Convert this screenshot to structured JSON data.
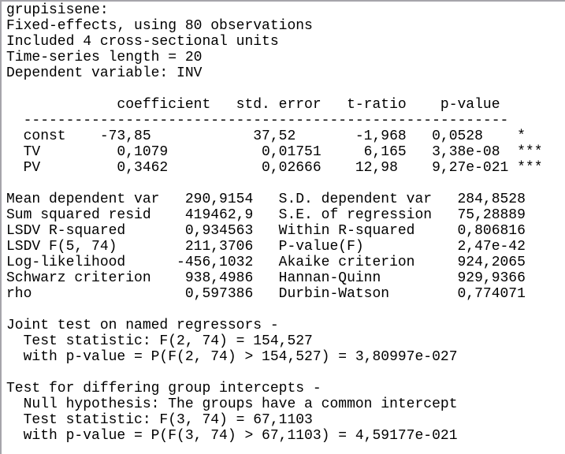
{
  "colors": {
    "background": "#ffffff",
    "text": "#000000",
    "border": "#a6a5ab"
  },
  "model": {
    "name": "grupisisene:",
    "estimator_line": "Fixed-effects, using 80 observations",
    "units_line": "Included 4 cross-sectional units",
    "ts_length_line": "Time-series length = 20",
    "dependent_line": "Dependent variable: INV"
  },
  "coefficient_table": {
    "columns": [
      "coefficient",
      "std. error",
      "t-ratio",
      "p-value"
    ],
    "rows": [
      {
        "variable": "const",
        "coefficient": "-73,85",
        "std_error": "37,52",
        "t_ratio": "-1,968",
        "p_value": "0,0528",
        "significance": "*"
      },
      {
        "variable": "TV",
        "coefficient": "0,1079",
        "std_error": "0,01751",
        "t_ratio": "6,165",
        "p_value": "3,38e-08",
        "significance": "***"
      },
      {
        "variable": "PV",
        "coefficient": "0,3462",
        "std_error": "0,02666",
        "t_ratio": "12,98",
        "p_value": "9,27e-021",
        "significance": "***"
      }
    ]
  },
  "statistics": [
    {
      "label": "Mean dependent var",
      "value": "290,9154"
    },
    {
      "label": "S.D. dependent var",
      "value": "284,8528"
    },
    {
      "label": "Sum squared resid",
      "value": "419462,9"
    },
    {
      "label": "S.E. of regression",
      "value": "75,28889"
    },
    {
      "label": "LSDV R-squared",
      "value": "0,934563"
    },
    {
      "label": "Within R-squared",
      "value": "0,806816"
    },
    {
      "label": "LSDV F(5, 74)",
      "value": "211,3706"
    },
    {
      "label": "P-value(F)",
      "value": "2,47e-42"
    },
    {
      "label": "Log-likelihood",
      "value": "-456,1032"
    },
    {
      "label": "Akaike criterion",
      "value": "924,2065"
    },
    {
      "label": "Schwarz criterion",
      "value": "938,4986"
    },
    {
      "label": "Hannan-Quinn",
      "value": "929,9366"
    },
    {
      "label": "rho",
      "value": "0,597386"
    },
    {
      "label": "Durbin-Watson",
      "value": "0,774071"
    }
  ],
  "tests": [
    {
      "title": "Joint test on named regressors -",
      "statistic": "F(2, 74) = 154,527",
      "p_value_line": "with p-value = P(F(2, 74) > 154,527) = 3,80997e-027"
    },
    {
      "title": "Test for differing group intercepts -",
      "null_hypothesis": "The groups have a common intercept",
      "statistic": "F(3, 74) = 67,1103",
      "p_value_line": "with p-value = P(F(3, 74) > 67,1103) = 4,59177e-021"
    }
  ],
  "report": {
    "lines": [
      "grupisisene:",
      "Fixed-effects, using 80 observations",
      "Included 4 cross-sectional units",
      "Time-series length = 20",
      "Dependent variable: INV",
      "",
      "             coefficient   std. error   t-ratio    p-value",
      "  ---------------------------------------------------------",
      "  const    -73,85            37,52       -1,968   0,0528    *",
      "  TV         0,1079           0,01751     6,165   3,38e-08  ***",
      "  PV         0,3462           0,02666    12,98    9,27e-021 ***",
      "",
      "Mean dependent var   290,9154   S.D. dependent var   284,8528",
      "Sum squared resid    419462,9   S.E. of regression   75,28889",
      "LSDV R-squared       0,934563   Within R-squared     0,806816",
      "LSDV F(5, 74)        211,3706   P-value(F)           2,47e-42",
      "Log-likelihood      -456,1032   Akaike criterion     924,2065",
      "Schwarz criterion    938,4986   Hannan-Quinn         929,9366",
      "rho                  0,597386   Durbin-Watson        0,774071",
      "",
      "Joint test on named regressors -",
      "  Test statistic: F(2, 74) = 154,527",
      "  with p-value = P(F(2, 74) > 154,527) = 3,80997e-027",
      "",
      "Test for differing group intercepts -",
      "  Null hypothesis: The groups have a common intercept",
      "  Test statistic: F(3, 74) = 67,1103",
      "  with p-value = P(F(3, 74) > 67,1103) = 4,59177e-021"
    ]
  }
}
